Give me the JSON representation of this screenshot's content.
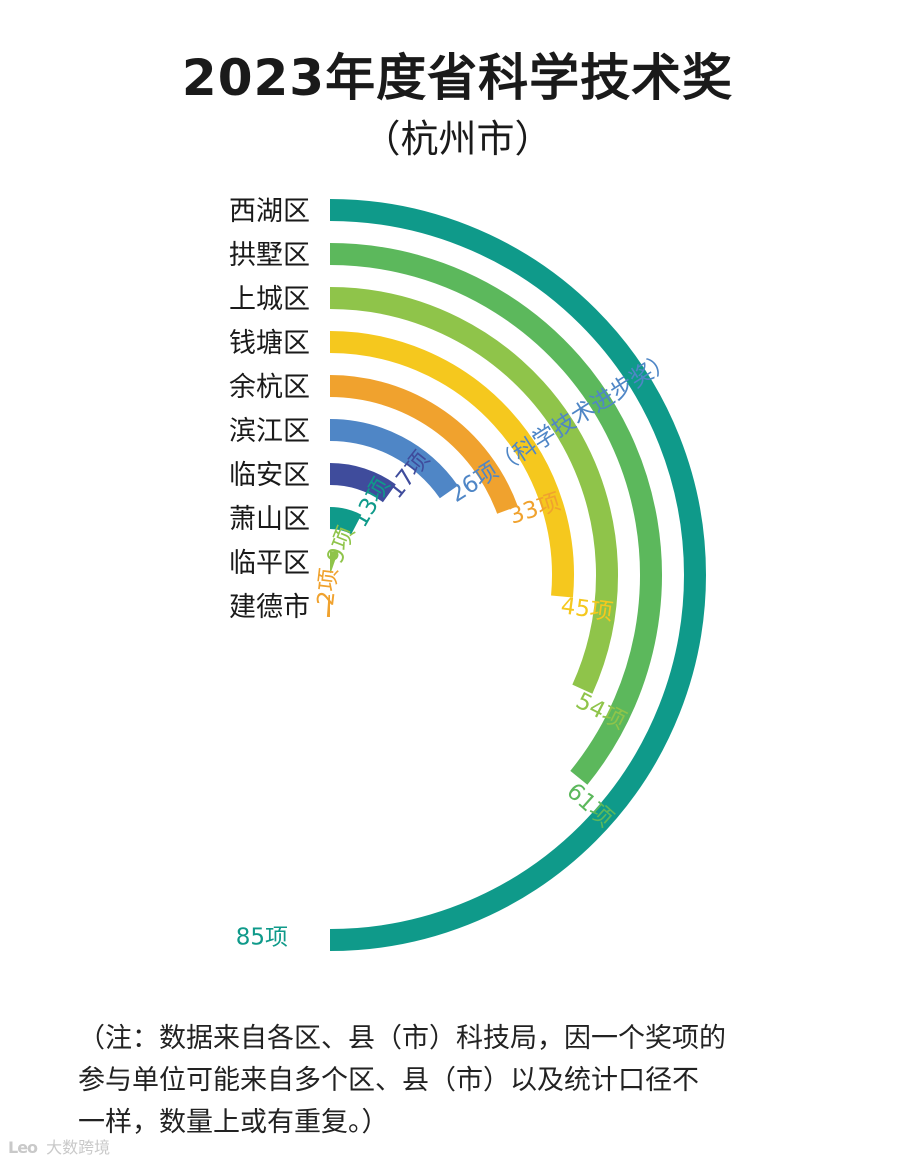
{
  "title": "2023年度省科学技术奖",
  "subtitle": "（杭州市）",
  "chart_data": {
    "type": "bar",
    "style": "radial-bar",
    "categories": [
      "西湖区",
      "拱墅区",
      "上城区",
      "钱塘区",
      "余杭区",
      "滨江区",
      "临安区",
      "萧山区",
      "临平区",
      "建德市"
    ],
    "values": [
      85,
      61,
      54,
      45,
      33,
      26,
      17,
      13,
      9,
      2
    ],
    "value_labels": [
      "85项",
      "61项",
      "54项",
      "45项",
      "33项",
      "26项（科学技术进步奖）",
      "17项",
      "13项",
      "9项",
      "2项"
    ],
    "colors": [
      "#0f9a8a",
      "#5cb85c",
      "#8fc44a",
      "#f5c81e",
      "#f0a22e",
      "#4f86c6",
      "#3f4c9c",
      "#0f9a8a",
      "#8fc44a",
      "#f0a22e"
    ],
    "label_colors": [
      "#0f9a8a",
      "#5cb85c",
      "#8fc44a",
      "#f5c81e",
      "#f0a22e",
      "#4f86c6",
      "#3f4c9c",
      "#0f9a8a",
      "#8fc44a",
      "#f0a22e"
    ]
  },
  "note": {
    "lines": [
      "（注：数据来自各区、县（市）科技局，因一个奖项的",
      "参与单位可能来自多个区、县（市）以及统计口径不",
      "一样，数量上或有重复。）"
    ]
  },
  "watermark": {
    "logo": "Leo",
    "text": "大数跨境"
  }
}
